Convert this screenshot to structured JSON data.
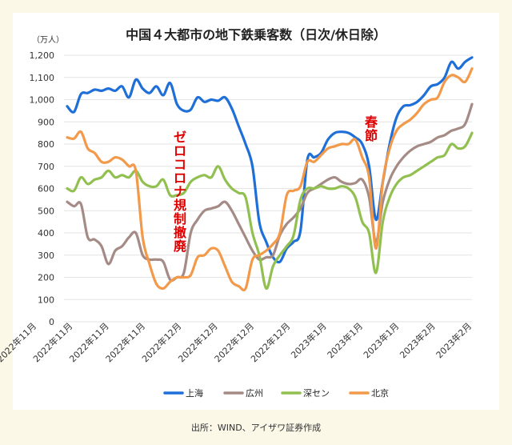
{
  "chart_data": {
    "type": "line",
    "title": "中国４大都市の地下鉄乗客数（日次/休日除）",
    "yunit": "（万人）",
    "ylim": [
      0,
      1200
    ],
    "yticks": [
      "0",
      "100",
      "200",
      "300",
      "400",
      "500",
      "600",
      "700",
      "800",
      "900",
      "1,000",
      "1,100",
      "1,200"
    ],
    "xticks": [
      "2022年11月",
      "2022年11月",
      "2022年11月",
      "2022年11月",
      "2022年12月",
      "2022年12月",
      "2022年12月",
      "2022年12月",
      "2023年1月",
      "2023年1月",
      "2023年1月",
      "2023年2月",
      "2023年2月"
    ],
    "grid": true,
    "legend_position": "bottom",
    "annotations": [
      "ゼロコロナ規制撤廃",
      "春節"
    ],
    "series": [
      {
        "name": "上海",
        "color": "#1F6FD9",
        "values": [
          970,
          945,
          1025,
          1030,
          1045,
          1040,
          1050,
          1040,
          1060,
          1010,
          1090,
          1050,
          1030,
          1060,
          1020,
          1075,
          980,
          950,
          955,
          1010,
          990,
          1000,
          995,
          1010,
          960,
          880,
          800,
          700,
          450,
          360,
          290,
          270,
          330,
          360,
          410,
          730,
          740,
          760,
          820,
          850,
          855,
          850,
          830,
          800,
          700,
          460,
          630,
          800,
          920,
          970,
          975,
          990,
          1020,
          1060,
          1070,
          1100,
          1170,
          1140,
          1170,
          1190
        ]
      },
      {
        "name": "広州",
        "color": "#A58B86",
        "values": [
          540,
          520,
          530,
          380,
          370,
          340,
          260,
          320,
          340,
          380,
          400,
          300,
          280,
          280,
          270,
          190,
          200,
          220,
          400,
          460,
          500,
          510,
          520,
          540,
          500,
          440,
          380,
          320,
          280,
          290,
          300,
          390,
          440,
          470,
          510,
          580,
          600,
          620,
          640,
          650,
          630,
          620,
          625,
          640,
          560,
          360,
          540,
          640,
          700,
          740,
          770,
          790,
          800,
          810,
          830,
          840,
          860,
          870,
          890,
          980
        ]
      },
      {
        "name": "深セン",
        "color": "#92C050",
        "values": [
          600,
          590,
          650,
          620,
          640,
          650,
          680,
          650,
          660,
          650,
          680,
          630,
          610,
          610,
          640,
          570,
          570,
          580,
          630,
          650,
          660,
          650,
          700,
          640,
          600,
          580,
          560,
          400,
          300,
          150,
          250,
          300,
          340,
          390,
          550,
          600,
          600,
          610,
          600,
          600,
          610,
          600,
          560,
          450,
          400,
          220,
          450,
          560,
          620,
          650,
          660,
          680,
          700,
          720,
          740,
          750,
          800,
          780,
          790,
          850
        ]
      },
      {
        "name": "北京",
        "color": "#F2994A",
        "values": [
          830,
          825,
          855,
          780,
          760,
          720,
          720,
          740,
          730,
          700,
          680,
          380,
          260,
          170,
          150,
          180,
          200,
          200,
          210,
          290,
          300,
          330,
          320,
          250,
          180,
          160,
          150,
          280,
          300,
          320,
          350,
          400,
          570,
          590,
          610,
          720,
          720,
          750,
          780,
          790,
          800,
          800,
          820,
          740,
          650,
          330,
          630,
          780,
          860,
          890,
          910,
          940,
          980,
          1000,
          1010,
          1080,
          1110,
          1100,
          1080,
          1140
        ]
      }
    ]
  },
  "source": "出所：WIND、アイザワ証券作成"
}
